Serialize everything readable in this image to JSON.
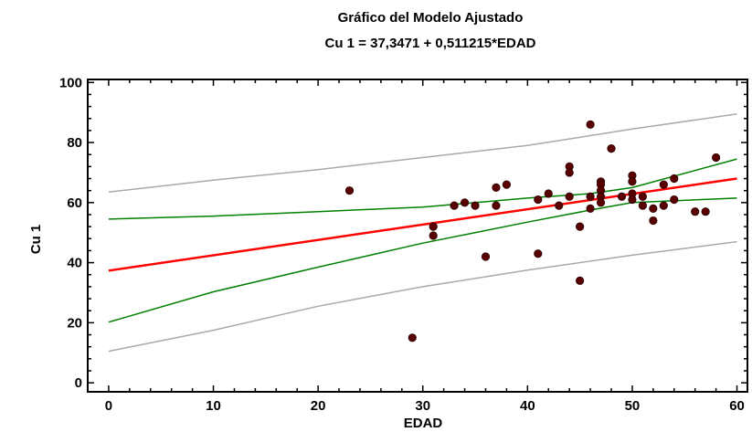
{
  "chart_data": {
    "type": "scatter",
    "title": "Gráfico del Modelo Ajustado",
    "subtitle": "Cu 1 = 37,3471 + 0,511215*EDAD",
    "xlabel": "EDAD",
    "ylabel": "Cu 1",
    "xlim": [
      -2,
      61
    ],
    "ylim": [
      -3,
      101
    ],
    "xticks": [
      0,
      10,
      20,
      30,
      40,
      50,
      60
    ],
    "yticks": [
      0,
      20,
      40,
      60,
      80,
      100
    ],
    "xtick_labels": [
      "0",
      "10",
      "20",
      "30",
      "40",
      "50",
      "60"
    ],
    "ytick_labels": [
      "0",
      "20",
      "40",
      "60",
      "80",
      "100"
    ],
    "grid": false,
    "regression": {
      "intercept": 37.3471,
      "slope": 0.511215
    },
    "confidence_band": {
      "x": [
        0,
        10,
        20,
        30,
        40,
        46,
        50,
        60
      ],
      "lower": [
        20.2,
        30.3,
        38.5,
        46.5,
        53.5,
        57.5,
        60.0,
        61.5
      ],
      "upper": [
        54.5,
        55.5,
        57.0,
        58.5,
        61.5,
        63.0,
        65.0,
        74.5
      ]
    },
    "prediction_band": {
      "x": [
        0,
        10,
        20,
        30,
        40,
        50,
        60
      ],
      "lower": [
        10.5,
        17.5,
        25.5,
        32.0,
        37.5,
        42.5,
        47.0
      ],
      "upper": [
        63.5,
        67.5,
        71.0,
        75.0,
        79.0,
        84.5,
        89.5
      ]
    },
    "points": [
      {
        "x": 23,
        "y": 64
      },
      {
        "x": 29,
        "y": 15
      },
      {
        "x": 31,
        "y": 52
      },
      {
        "x": 31,
        "y": 49
      },
      {
        "x": 33,
        "y": 59
      },
      {
        "x": 34,
        "y": 60
      },
      {
        "x": 35,
        "y": 59
      },
      {
        "x": 36,
        "y": 42
      },
      {
        "x": 37,
        "y": 65
      },
      {
        "x": 37,
        "y": 59
      },
      {
        "x": 38,
        "y": 66
      },
      {
        "x": 41,
        "y": 61
      },
      {
        "x": 41,
        "y": 43
      },
      {
        "x": 42,
        "y": 63
      },
      {
        "x": 43,
        "y": 59
      },
      {
        "x": 44,
        "y": 72
      },
      {
        "x": 44,
        "y": 70
      },
      {
        "x": 44,
        "y": 62
      },
      {
        "x": 45,
        "y": 52
      },
      {
        "x": 45,
        "y": 34
      },
      {
        "x": 46,
        "y": 86
      },
      {
        "x": 46,
        "y": 62
      },
      {
        "x": 46,
        "y": 58
      },
      {
        "x": 47,
        "y": 67
      },
      {
        "x": 47,
        "y": 66
      },
      {
        "x": 47,
        "y": 64
      },
      {
        "x": 47,
        "y": 62
      },
      {
        "x": 47,
        "y": 60
      },
      {
        "x": 48,
        "y": 78
      },
      {
        "x": 49,
        "y": 62
      },
      {
        "x": 50,
        "y": 69
      },
      {
        "x": 50,
        "y": 67
      },
      {
        "x": 50,
        "y": 63
      },
      {
        "x": 50,
        "y": 61
      },
      {
        "x": 51,
        "y": 62
      },
      {
        "x": 51,
        "y": 59
      },
      {
        "x": 52,
        "y": 58
      },
      {
        "x": 52,
        "y": 54
      },
      {
        "x": 53,
        "y": 66
      },
      {
        "x": 53,
        "y": 59
      },
      {
        "x": 54,
        "y": 68
      },
      {
        "x": 54,
        "y": 61
      },
      {
        "x": 56,
        "y": 57
      },
      {
        "x": 57,
        "y": 57
      },
      {
        "x": 58,
        "y": 75
      }
    ],
    "colors": {
      "fit": "#ff0000",
      "confidence": "#008000",
      "prediction": "#a9a9a9",
      "points": "#5a0000"
    }
  }
}
